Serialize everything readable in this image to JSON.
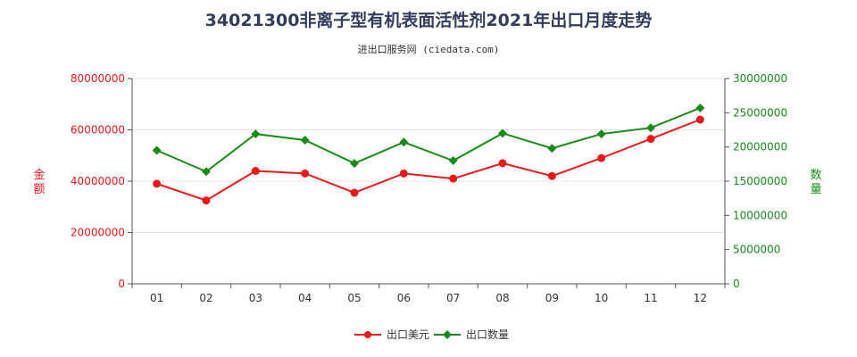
{
  "header": {
    "title": "34021300非离子型有机表面活性剂2021年出口月度走势",
    "subtitle": "进出口服务网 (ciedata.com)"
  },
  "colors": {
    "series1": "#e8191c",
    "series2": "#1a8a1a",
    "axis": "#555555",
    "grid": "#e5e5e5"
  },
  "chart_data": {
    "type": "line",
    "x": [
      "01",
      "02",
      "03",
      "04",
      "05",
      "06",
      "07",
      "08",
      "09",
      "10",
      "11",
      "12"
    ],
    "left_axis": {
      "label": "金额",
      "ylim": [
        0,
        80000000
      ],
      "ticks": [
        "0",
        "20000000",
        "40000000",
        "60000000",
        "80000000"
      ]
    },
    "right_axis": {
      "label": "数量",
      "ylim": [
        0,
        30000000
      ],
      "ticks": [
        "0",
        "5000000",
        "10000000",
        "15000000",
        "20000000",
        "25000000",
        "30000000"
      ]
    },
    "series": [
      {
        "name": "出口美元",
        "axis": "left",
        "values": [
          39000000,
          32500000,
          44000000,
          43000000,
          35500000,
          43000000,
          41000000,
          47000000,
          42000000,
          49000000,
          56500000,
          64000000
        ]
      },
      {
        "name": "出口数量",
        "axis": "right",
        "values": [
          19500000,
          16400000,
          21900000,
          21000000,
          17600000,
          20700000,
          18000000,
          22000000,
          19800000,
          21900000,
          22800000,
          25700000
        ]
      }
    ],
    "legend_position": "bottom-center",
    "grid": true
  }
}
